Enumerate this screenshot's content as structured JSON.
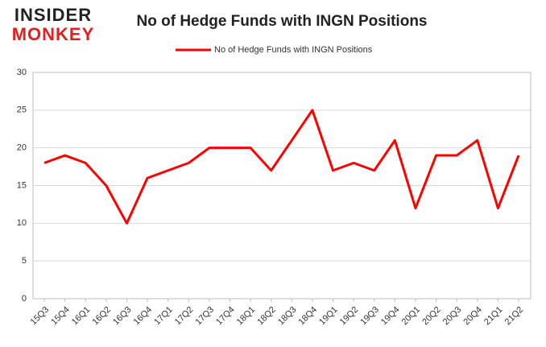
{
  "logo": {
    "top": "INSIDER",
    "bottom": "MONKEY"
  },
  "chart_data": {
    "type": "line",
    "title": "No of Hedge Funds with INGN Positions",
    "categories": [
      "15Q3",
      "15Q4",
      "16Q1",
      "16Q2",
      "16Q3",
      "16Q4",
      "17Q1",
      "17Q2",
      "17Q3",
      "17Q4",
      "18Q1",
      "18Q2",
      "18Q3",
      "18Q4",
      "19Q1",
      "19Q2",
      "19Q3",
      "19Q4",
      "20Q1",
      "20Q2",
      "20Q3",
      "20Q4",
      "21Q1",
      "21Q2"
    ],
    "series": [
      {
        "name": "No of Hedge Funds with INGN Positions",
        "color": "#ff0000",
        "values": [
          18,
          19,
          18,
          15,
          10,
          16,
          17,
          18,
          20,
          20,
          20,
          17,
          21,
          25,
          17,
          18,
          17,
          21,
          12,
          19,
          19,
          21,
          12,
          19
        ]
      }
    ],
    "ylim": [
      0,
      30
    ],
    "yticks": [
      0,
      5,
      10,
      15,
      20,
      25,
      30
    ],
    "grid": true,
    "legend": "top"
  }
}
